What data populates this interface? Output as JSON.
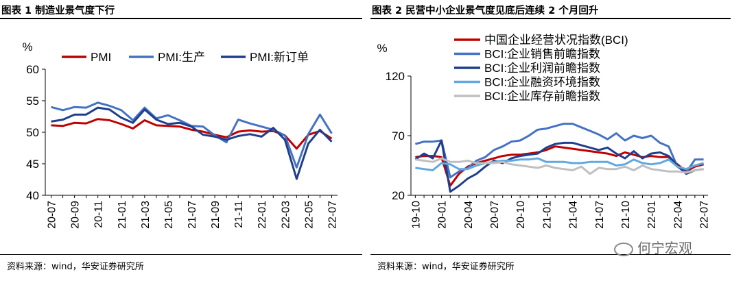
{
  "colors": {
    "red": "#c00000",
    "blue": "#4472c4",
    "navy": "#1f3f8c",
    "light_blue": "#5fa8e0",
    "gray": "#bfbfbf"
  },
  "watermark": "何宁宏观",
  "chart_data": [
    {
      "type": "line",
      "title": "图表 1  制造业景气度下行",
      "source": "资料来源：wind，华安证券研究所",
      "ylabel": "%",
      "ylim": [
        40,
        60
      ],
      "yticks": [
        40,
        45,
        50,
        55,
        60
      ],
      "x": [
        "20-07",
        "20-08",
        "20-09",
        "20-10",
        "20-11",
        "20-12",
        "21-01",
        "21-02",
        "21-03",
        "21-04",
        "21-05",
        "21-06",
        "21-07",
        "21-08",
        "21-09",
        "21-10",
        "21-11",
        "21-12",
        "22-01",
        "22-02",
        "22-03",
        "22-04",
        "22-05",
        "22-06",
        "22-07"
      ],
      "xtick_labels": [
        "20-07",
        "20-09",
        "20-11",
        "21-01",
        "21-03",
        "21-05",
        "21-07",
        "21-09",
        "21-11",
        "22-01",
        "22-03",
        "22-05",
        "22-07"
      ],
      "legend_position": "top",
      "series": [
        {
          "name": "PMI",
          "color": "#c00000",
          "values": [
            51.1,
            51.0,
            51.5,
            51.4,
            52.1,
            51.9,
            51.3,
            50.6,
            51.9,
            51.1,
            51.0,
            50.9,
            50.4,
            50.1,
            49.6,
            49.2,
            50.1,
            50.3,
            50.1,
            50.2,
            49.5,
            47.4,
            49.6,
            50.2,
            49.0
          ]
        },
        {
          "name": "PMI:生产",
          "color": "#4472c4",
          "values": [
            54.0,
            53.5,
            54.0,
            53.9,
            54.7,
            54.2,
            53.5,
            51.9,
            53.9,
            52.2,
            52.7,
            51.9,
            51.0,
            50.9,
            49.5,
            48.4,
            52.0,
            51.4,
            50.9,
            50.4,
            49.5,
            44.4,
            49.7,
            52.8,
            49.8
          ]
        },
        {
          "name": "PMI:新订单",
          "color": "#1f3f8c",
          "values": [
            51.7,
            52.0,
            52.8,
            52.8,
            53.9,
            53.6,
            52.3,
            51.5,
            53.6,
            52.0,
            51.3,
            51.5,
            50.9,
            49.6,
            49.3,
            48.8,
            49.4,
            49.7,
            49.3,
            50.7,
            48.8,
            42.6,
            48.2,
            50.4,
            48.5
          ]
        }
      ]
    },
    {
      "type": "line",
      "title": "图表 2  民营中小企业景气度见底后连续 2 个月回升",
      "source": "资料来源：wind，华安证券研究所",
      "ylabel": "%",
      "ylim": [
        20,
        120
      ],
      "yticks": [
        20,
        70,
        120
      ],
      "x": [
        "19-10",
        "19-11",
        "19-12",
        "20-01",
        "20-02",
        "20-03",
        "20-04",
        "20-05",
        "20-06",
        "20-07",
        "20-08",
        "20-09",
        "20-10",
        "20-11",
        "20-12",
        "21-01",
        "21-02",
        "21-03",
        "21-04",
        "21-05",
        "21-06",
        "21-07",
        "21-08",
        "21-09",
        "21-10",
        "21-11",
        "21-12",
        "22-01",
        "22-02",
        "22-03",
        "22-04",
        "22-05",
        "22-06",
        "22-07"
      ],
      "xtick_labels": [
        "19-10",
        "20-01",
        "20-04",
        "20-07",
        "20-10",
        "21-01",
        "21-04",
        "21-07",
        "21-10",
        "22-01",
        "22-04",
        "22-07"
      ],
      "legend_position": "top",
      "series": [
        {
          "name": "中国企业经营状况指数(BCI)",
          "color": "#c00000",
          "values": [
            52,
            53,
            53,
            52,
            28,
            38,
            44,
            47,
            49,
            51,
            53,
            54,
            54,
            55,
            56,
            58,
            61,
            60,
            59,
            58,
            57,
            56,
            55,
            53,
            56,
            54,
            52,
            53,
            52,
            52,
            46,
            40,
            44,
            46
          ]
        },
        {
          "name": "BCI:企业销售前瞻指数",
          "color": "#4472c4",
          "values": [
            63,
            65,
            65,
            66,
            35,
            40,
            43,
            49,
            52,
            58,
            61,
            65,
            66,
            70,
            75,
            76,
            78,
            80,
            80,
            77,
            74,
            71,
            67,
            72,
            66,
            70,
            68,
            70,
            64,
            61,
            44,
            39,
            50,
            50
          ]
        },
        {
          "name": "BCI:企业利润前瞻指数",
          "color": "#1f3f8c",
          "values": [
            50,
            55,
            51,
            66,
            23,
            28,
            34,
            38,
            44,
            49,
            47,
            51,
            53,
            54,
            55,
            60,
            63,
            64,
            64,
            62,
            60,
            58,
            60,
            55,
            51,
            57,
            51,
            55,
            56,
            53,
            45,
            38,
            41,
            42
          ]
        },
        {
          "name": "BCI:企业融资环境指数",
          "color": "#5fa8e0",
          "values": [
            43,
            42,
            41,
            47,
            46,
            42,
            42,
            45,
            47,
            48,
            49,
            49,
            50,
            50,
            51,
            48,
            48,
            48,
            47,
            47,
            48,
            48,
            48,
            45,
            46,
            50,
            47,
            46,
            47,
            50,
            44,
            42,
            45,
            47
          ]
        },
        {
          "name": "BCI:企业库存前瞻指数",
          "color": "#bfbfbf",
          "values": [
            50,
            49,
            48,
            51,
            48,
            48,
            49,
            47,
            47,
            47,
            48,
            46,
            45,
            44,
            43,
            45,
            43,
            42,
            41,
            44,
            38,
            43,
            42,
            42,
            44,
            41,
            45,
            42,
            41,
            40,
            40,
            39,
            41,
            42
          ]
        }
      ]
    }
  ]
}
